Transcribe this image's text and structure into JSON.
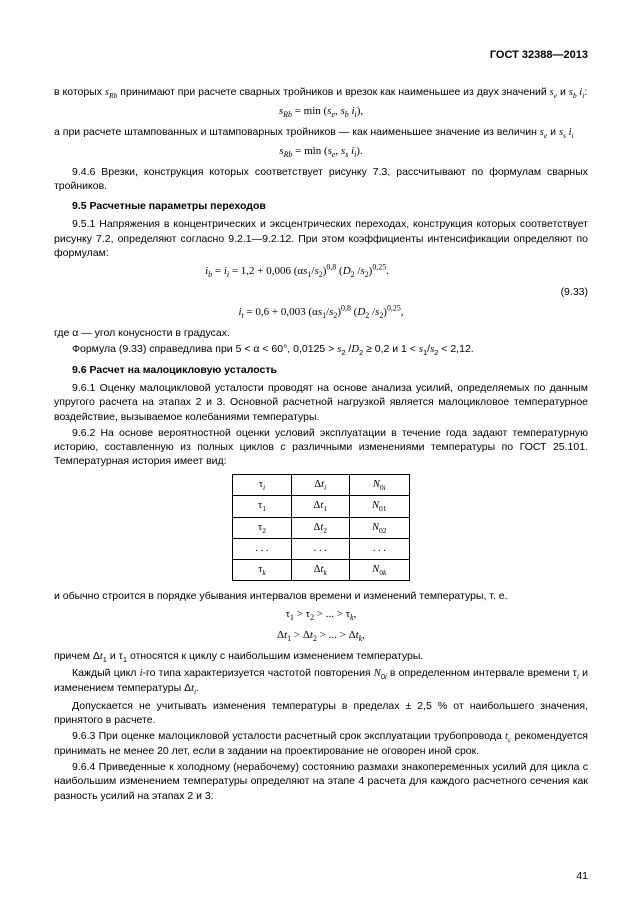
{
  "header": "ГОСТ 32388—2013",
  "p1a": "в которых ",
  "p1b": " принимают при расчете сварных тройников и врезок как наименьшее из двух значений ",
  "p1c": " и ",
  "p1d": ":",
  "f1a": "s",
  "f1b": " = min (",
  "f1c": ", ",
  "f1d": "),",
  "p2a": "а при расчете штампованных и штамповарных тройников — как наименьшее значение из величин ",
  "p2b": " и ",
  "f2a": "s",
  "f2b": " = min (",
  "f2c": ", ",
  "f2d": ").",
  "p3": "9.4.6 Врезки, конструкция которых соответствует рисунку 7.3, рассчитывают по формулам сварных тройников.",
  "s95": "9.5 Расчетные параметры переходов",
  "p4": "9.5.1 Напряжения в концентрических и эксцентрических переходах, конструкция которых соответствует рисунку 7.2, определяют согласно 9.2.1—9.2.12. При этом коэффициенты интенсификации определяют по формулам:",
  "f3": "i",
  "f3eq": " = ",
  "f3r": " = 1,2 + 0,006 (α",
  "f3s": "/",
  "f3e": ")",
  "f3p1": "0,8",
  "f3sp": " (",
  "f3d": "/",
  "f3e2": ")",
  "f3p2": "0,25",
  "f3dot": ".",
  "eq933": "(9.33)",
  "f4": "i",
  "f4eq": " = 0,6 + 0,003 (α",
  "f4e2": ")",
  "f4c": ",",
  "p5a": "где α — угол конусности в градусах.",
  "p5b_a": "Формула (9.33) справедлива при 5 < α < 60°, 0,0125 > ",
  "p5b_b": " ≥ 0,2 и 1 < ",
  "p5b_c": " < 2,12.",
  "s96": "9.6 Расчет на малоцикловую усталость",
  "p6": "9.6.1 Оценку малоцикловой усталости проводят на основе анализа усилий, определяемых по данным упругого расчета на этапах 2 и 3. Основной расчетной нагрузкой является малоцикловое температурное воздействие, вызываемое колебаниями температуры.",
  "p7": "9.6.2 На основе вероятностной оценки условий эксплуатации в течение года задают температурную историю, составленную из полных циклов с различными изменениями температуры по ГОСТ 25.101. Температурная история имеет вид:",
  "table": {
    "rows": [
      [
        "τ<sub><i>i</i></sub>",
        "Δ<i>t</i><sub><i>i</i></sub>",
        "<i>N</i><sub>0<i>i</i></sub>"
      ],
      [
        "τ<sub>1</sub>",
        "Δ<i>t</i><sub>1</sub>",
        "<i>N</i><sub>01</sub>"
      ],
      [
        "τ<sub>2</sub>",
        "Δ<i>t</i><sub>2</sub>",
        "<i>N</i><sub>02</sub>"
      ],
      [
        ". . .",
        ". . .",
        ". . ."
      ],
      [
        "τ<sub><i>k</i></sub>",
        "Δ<i>t</i><sub><i>k</i></sub>",
        "<i>N</i><sub>0<i>k</i></sub>"
      ]
    ]
  },
  "p8": "и обычно строится в порядке убывания интервалов времени и изменений температуры, т. е.",
  "f5": "τ<sub>1</sub> > τ<sub>2</sub> > ... > τ<sub><i>k</i></sub>,",
  "f6": "Δ<i>t</i><sub>1</sub> > Δ<i>t</i><sub>2</sub> > ... > Δ<i>t</i><sub><i>k</i></sub>,",
  "p9a": "причем Δ",
  "p9b": " и τ",
  "p9c": " относятся к циклу с наибольшим изменением температуры.",
  "p10a": "Каждый цикл ",
  "p10b": "-го типа характеризуется частотой повторения ",
  "p10c": " в определенном интервале времени τ",
  "p10d": " и изменением температуры Δ",
  "p10e": ".",
  "p11": "Допускается не учитывать изменения температуры в пределах ± 2,5 % от наибольшего значения, принятого в расчете.",
  "p12a": "9.6.3 При оценке малоцикловой усталости расчетный срок эксплуатации трубопровода ",
  "p12b": " рекомендуется принимать не менее 20 лет, если в задании на проектирование не оговорен иной срок.",
  "p13": "9.6.4 Приведенные к холодному (нерабочему) состоянию размахи знакопеременных усилий для цикла с наибольшим изменением температуры определяют на этапе 4 расчета для каждого расчетного сечения как разность усилий на этапах 2 и 3:",
  "pagenum": "41"
}
